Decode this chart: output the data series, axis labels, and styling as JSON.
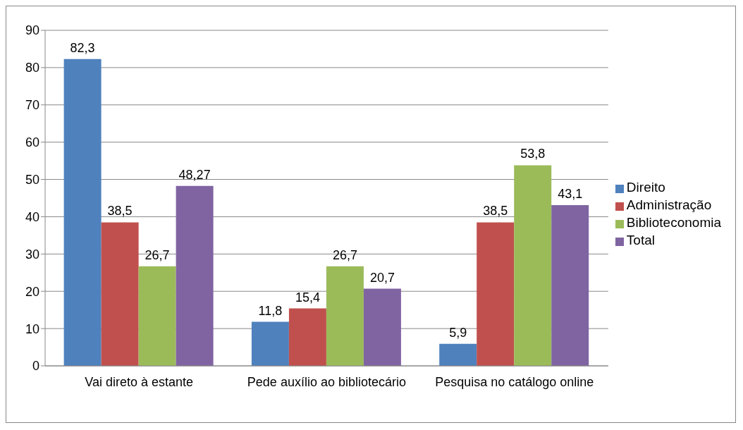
{
  "chart_data": {
    "type": "bar",
    "categories": [
      "Vai direto à estante",
      "Pede auxílio ao bibliotecário",
      "Pesquisa no catálogo online"
    ],
    "series": [
      {
        "name": "Direito",
        "color": "#4f81bd",
        "values": [
          82.3,
          11.8,
          5.9
        ],
        "value_labels": [
          "82,3",
          "11,8",
          "5,9"
        ]
      },
      {
        "name": "Administração",
        "color": "#c0504d",
        "values": [
          38.5,
          15.4,
          38.5
        ],
        "value_labels": [
          "38,5",
          "15,4",
          "38,5"
        ]
      },
      {
        "name": "Biblioteconomia",
        "color": "#9bbb59",
        "values": [
          26.7,
          26.7,
          53.8
        ],
        "value_labels": [
          "26,7",
          "26,7",
          "53,8"
        ]
      },
      {
        "name": "Total",
        "color": "#8064a2",
        "values": [
          48.27,
          20.7,
          43.1
        ],
        "value_labels": [
          "48,27",
          "20,7",
          "43,1"
        ]
      }
    ],
    "ylim": [
      0,
      90
    ],
    "yticks": [
      0,
      10,
      20,
      30,
      40,
      50,
      60,
      70,
      80,
      90
    ],
    "grid": "y",
    "legend": "right"
  }
}
